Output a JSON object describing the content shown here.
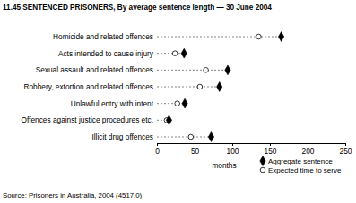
{
  "chart_data": {
    "type": "scatter",
    "orientation": "horizontal",
    "title": "11.45  SENTENCED PRISONERS, By average sentence length — 30 June 2004",
    "categories": [
      "Homicide and related offences",
      "Acts intended to cause injury",
      "Sexual assault and related offences",
      "Robbery, extortion and related offences",
      "Unlawful entry with intent",
      "Offences against justice procedures etc.",
      "Illicit drug offences"
    ],
    "series": [
      {
        "name": "Aggregate sentence",
        "color": "#000000",
        "marker": "diamond",
        "values": [
          165,
          36,
          94,
          83,
          37,
          16,
          72
        ]
      },
      {
        "name": "Expected time to serve",
        "color": "#000000",
        "marker": "circle-open",
        "values": [
          135,
          24,
          65,
          57,
          27,
          13,
          45
        ]
      }
    ],
    "x_label": "months",
    "xlim": [
      0,
      250
    ],
    "xticks": [
      0,
      50,
      100,
      150,
      200,
      250
    ],
    "source": "Source: Prisoners in Australia, 2004 (4517.0)."
  }
}
